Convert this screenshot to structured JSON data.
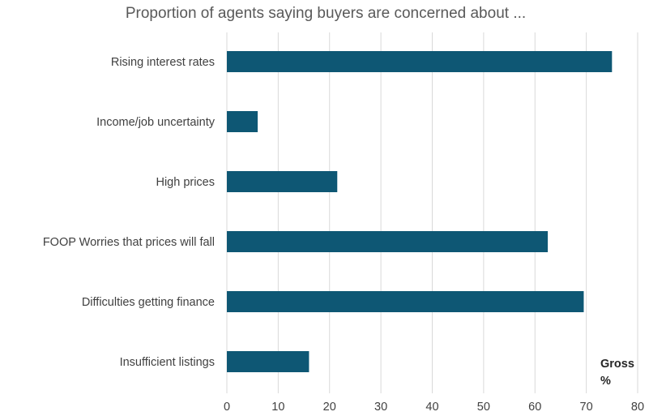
{
  "chart_data": {
    "type": "bar",
    "orientation": "horizontal",
    "title": "Proportion of agents saying buyers are concerned about ...",
    "categories": [
      "Rising interest rates",
      "Income/job uncertainty",
      "High prices",
      "FOOP Worries that prices will fall",
      "Difficulties getting finance",
      "Insufficient listings"
    ],
    "values": [
      75,
      6,
      21.5,
      62.5,
      69.5,
      16
    ],
    "xlim": [
      0,
      80
    ],
    "xticks": [
      0,
      10,
      20,
      30,
      40,
      50,
      60,
      70,
      80
    ],
    "tick_labels": [
      "0",
      "10",
      "20",
      "30",
      "40",
      "50",
      "60",
      "70",
      "80"
    ],
    "unit_label_line1": "Gross",
    "unit_label_line2": "%",
    "xlabel": "",
    "ylabel": "",
    "grid": true,
    "bar_color": "#0e5774",
    "grid_color": "#d9d9d9"
  }
}
